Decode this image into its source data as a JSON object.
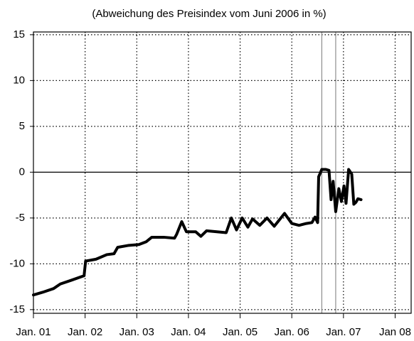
{
  "chart_data": {
    "type": "line",
    "title": "(Abweichung des Preisindex vom Juni 2006 in %)",
    "x": [
      2001.0,
      2001.18,
      2001.39,
      2001.52,
      2001.73,
      2001.98,
      2002.01,
      2002.21,
      2002.42,
      2002.56,
      2002.63,
      2002.83,
      2003.04,
      2003.18,
      2003.29,
      2003.52,
      2003.73,
      2003.77,
      2003.87,
      2003.96,
      2004.14,
      2004.24,
      2004.35,
      2004.55,
      2004.73,
      2004.83,
      2004.93,
      2005.04,
      2005.15,
      2005.24,
      2005.38,
      2005.52,
      2005.66,
      2005.86,
      2006.0,
      2006.14,
      2006.28,
      2006.39,
      2006.45,
      2006.5,
      2006.52,
      2006.58,
      2006.66,
      2006.72,
      2006.76,
      2006.8,
      2006.85,
      2006.91,
      2006.96,
      2007.01,
      2007.05,
      2007.1,
      2007.16,
      2007.2,
      2007.24,
      2007.28,
      2007.34
    ],
    "series": [
      {
        "color": "#000000",
        "values": [
          -13.4,
          -13.1,
          -12.7,
          -12.2,
          -11.8,
          -11.3,
          -9.7,
          -9.5,
          -9.0,
          -8.9,
          -8.2,
          -8.0,
          -7.9,
          -7.6,
          -7.1,
          -7.1,
          -7.2,
          -6.8,
          -5.4,
          -6.5,
          -6.5,
          -7.0,
          -6.4,
          -6.5,
          -6.6,
          -5.0,
          -6.3,
          -5.0,
          -6.0,
          -5.1,
          -5.8,
          -5.0,
          -5.9,
          -4.5,
          -5.6,
          -5.8,
          -5.6,
          -5.5,
          -4.9,
          -5.5,
          -0.5,
          0.3,
          0.3,
          0.2,
          -3.0,
          -1.0,
          -4.3,
          -1.8,
          -3.2,
          -1.5,
          -3.4,
          0.3,
          -0.2,
          -3.5,
          -3.3,
          -2.9,
          -3.0
        ]
      }
    ],
    "xlim": [
      2001.0,
      2008.31
    ],
    "xticks": [
      {
        "value": 2001,
        "label": "Jan. 01"
      },
      {
        "value": 2002,
        "label": "Jan. 02"
      },
      {
        "value": 2003,
        "label": "Jan. 03"
      },
      {
        "value": 2004,
        "label": "Jan. 04"
      },
      {
        "value": 2005,
        "label": "Jan. 05"
      },
      {
        "value": 2006,
        "label": "Jan. 06"
      },
      {
        "value": 2007,
        "label": "Jan. 07"
      },
      {
        "value": 2008,
        "label": "Jan 08"
      }
    ],
    "ylim": [
      -15.4,
      15.3
    ],
    "yticks": [
      -15,
      -10,
      -5,
      0,
      5,
      10,
      15
    ],
    "grid": true,
    "highlight": [
      2006.58,
      2006.85
    ]
  }
}
